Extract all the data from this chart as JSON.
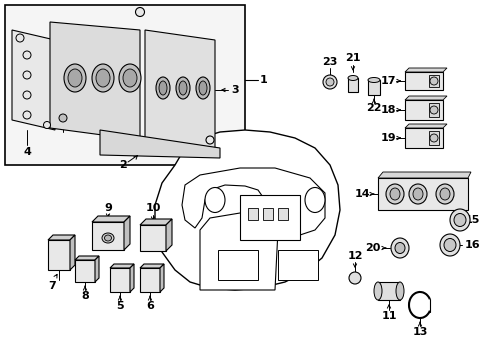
{
  "bg_color": "#ffffff",
  "lc": "#000000",
  "fig_width": 4.89,
  "fig_height": 3.6,
  "dpi": 100
}
